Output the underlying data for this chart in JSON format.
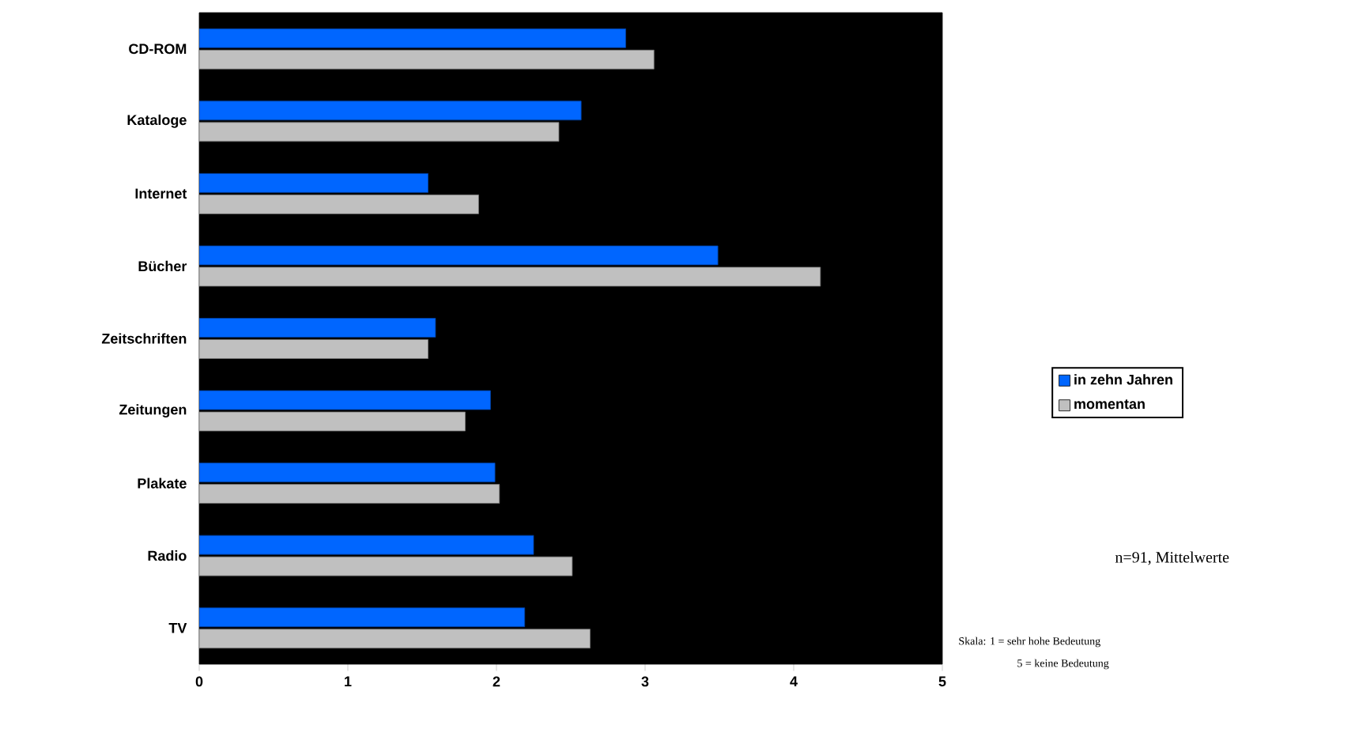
{
  "chart_data": {
    "type": "bar",
    "orientation": "horizontal",
    "categories": [
      "CD-ROM",
      "Kataloge",
      "Internet",
      "Bücher",
      "Zeitschriften",
      "Zeitungen",
      "Plakate",
      "Radio",
      "TV"
    ],
    "series": [
      {
        "name": "in zehn Jahren",
        "color": "#0066ff",
        "values": [
          2.87,
          2.57,
          1.54,
          3.49,
          1.59,
          1.96,
          1.99,
          2.25,
          2.19
        ]
      },
      {
        "name": "momentan",
        "color": "#c0c0c0",
        "values": [
          3.06,
          2.42,
          1.88,
          4.18,
          1.54,
          1.79,
          2.02,
          2.51,
          2.63
        ]
      }
    ],
    "xlim": [
      0,
      5
    ],
    "xticks": [
      0,
      1,
      2,
      3,
      4,
      5
    ],
    "grid": false,
    "legend": "right",
    "annotations": [
      "n=91, Mittelwerte",
      "Skala: 1 = sehr hohe Bedeutung",
      "5 = keine Bedeutung"
    ]
  }
}
